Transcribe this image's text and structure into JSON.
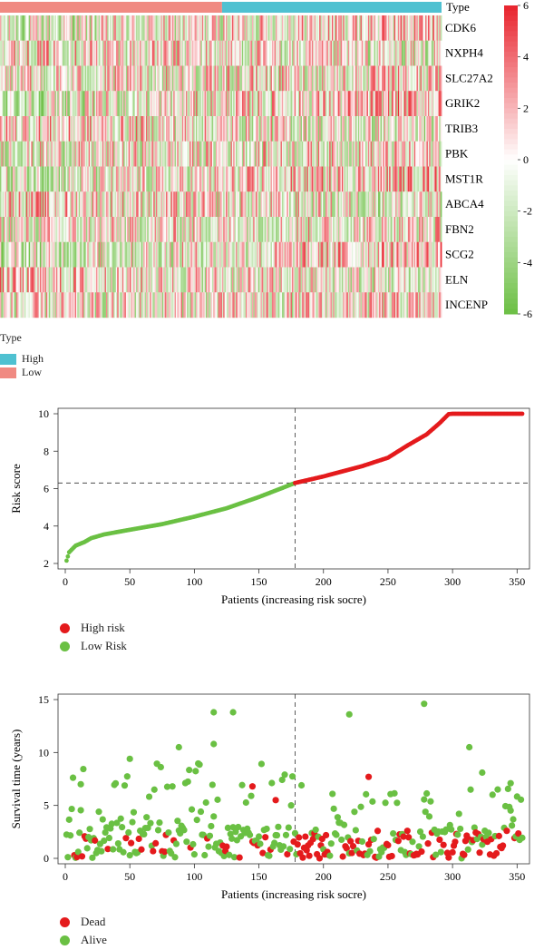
{
  "colors": {
    "low_type": "#f08a82",
    "high_type": "#4fc1d1",
    "heat_high": "#e8232c",
    "heat_mid": "#ffffff",
    "heat_low": "#6cbf44",
    "risk_high": "#e41a1c",
    "risk_low": "#6ac043",
    "dead": "#e41a1c",
    "alive": "#6ac043"
  },
  "chart_data": [
    {
      "type": "heatmap",
      "annotation_label": "Type",
      "genes": [
        "CDK6",
        "NXPH4",
        "SLC27A2",
        "GRIK2",
        "TRIB3",
        "PBK",
        "MST1R",
        "ABCA4",
        "FBN2",
        "SCG2",
        "ELN",
        "INCENP"
      ],
      "n_samples": 354,
      "type_split_index": 178,
      "column_annotation": {
        "first_group": "Low",
        "second_group": "High"
      },
      "color_scale": {
        "min": -6,
        "max": 6,
        "ticks": [
          6,
          4,
          2,
          0,
          -2,
          -4,
          -6
        ]
      },
      "legend": {
        "title": "Type",
        "items": [
          {
            "label": "High",
            "color": "#4fc1d1"
          },
          {
            "label": "Low",
            "color": "#f08a82"
          }
        ]
      }
    },
    {
      "type": "line",
      "xlabel": "Patients (increasing risk socre)",
      "ylabel": "Risk score",
      "xlim": [
        0,
        354
      ],
      "ylim": [
        2,
        10
      ],
      "xticks": [
        0,
        50,
        100,
        150,
        200,
        250,
        300,
        350
      ],
      "yticks": [
        2,
        4,
        6,
        8,
        10
      ],
      "cutoff": {
        "x": 178,
        "y": 6.3
      },
      "curve_knots": [
        [
          1,
          2.15
        ],
        [
          3,
          2.6
        ],
        [
          8,
          2.95
        ],
        [
          15,
          3.15
        ],
        [
          20,
          3.35
        ],
        [
          30,
          3.55
        ],
        [
          50,
          3.8
        ],
        [
          75,
          4.1
        ],
        [
          100,
          4.5
        ],
        [
          125,
          4.95
        ],
        [
          150,
          5.55
        ],
        [
          165,
          5.95
        ],
        [
          178,
          6.3
        ],
        [
          200,
          6.65
        ],
        [
          230,
          7.2
        ],
        [
          250,
          7.65
        ],
        [
          265,
          8.3
        ],
        [
          280,
          8.9
        ],
        [
          290,
          9.5
        ],
        [
          297,
          9.98
        ],
        [
          300,
          10.0
        ],
        [
          354,
          10.0
        ]
      ],
      "legend": [
        {
          "label": "High risk",
          "color": "#e41a1c"
        },
        {
          "label": "Low Risk",
          "color": "#6ac043"
        }
      ]
    },
    {
      "type": "scatter",
      "xlabel": "Patients (increasing risk socre)",
      "ylabel": "Survival time (years)",
      "xlim": [
        0,
        354
      ],
      "ylim": [
        0,
        15
      ],
      "xticks": [
        0,
        50,
        100,
        150,
        200,
        250,
        300,
        350
      ],
      "yticks": [
        0,
        5,
        10,
        15
      ],
      "cutoff_x": 178,
      "highlights": [
        {
          "x": 115,
          "y": 13.8,
          "status": "Alive"
        },
        {
          "x": 130,
          "y": 13.8,
          "status": "Alive"
        },
        {
          "x": 220,
          "y": 13.6,
          "status": "Alive"
        },
        {
          "x": 278,
          "y": 14.6,
          "status": "Alive"
        },
        {
          "x": 88,
          "y": 10.5,
          "status": "Alive"
        },
        {
          "x": 115,
          "y": 10.8,
          "status": "Alive"
        },
        {
          "x": 313,
          "y": 10.5,
          "status": "Alive"
        },
        {
          "x": 50,
          "y": 9.4,
          "status": "Alive"
        },
        {
          "x": 235,
          "y": 7.7,
          "status": "Dead"
        },
        {
          "x": 145,
          "y": 6.8,
          "status": "Dead"
        },
        {
          "x": 163,
          "y": 5.5,
          "status": "Dead"
        },
        {
          "x": 323,
          "y": 8.1,
          "status": "Alive"
        },
        {
          "x": 345,
          "y": 7.1,
          "status": "Alive"
        },
        {
          "x": 12,
          "y": 7.0,
          "status": "Alive"
        }
      ],
      "legend": [
        {
          "label": "Dead",
          "color": "#e41a1c"
        },
        {
          "label": "Alive",
          "color": "#6ac043"
        }
      ]
    }
  ]
}
